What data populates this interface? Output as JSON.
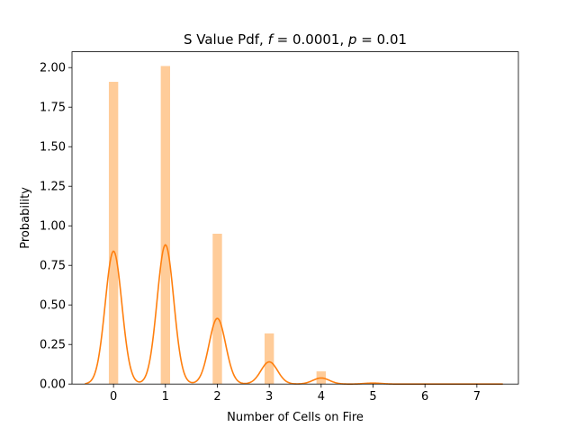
{
  "chart_data": {
    "type": "bar",
    "title": "S Value Pdf, f = 0.0001, p = 0.01",
    "title_parts": {
      "prefix": "S Value Pdf, ",
      "f_symbol": "f",
      "f_value": " = 0.0001, ",
      "p_symbol": "p",
      "p_value": " = 0.01"
    },
    "xlabel": "Number of Cells on Fire",
    "ylabel": "Probability",
    "xlim": [
      -0.8,
      7.8
    ],
    "ylim": [
      0,
      2.1
    ],
    "xticks": [
      0,
      1,
      2,
      3,
      4,
      5,
      6,
      7
    ],
    "xtick_labels": [
      "0",
      "1",
      "2",
      "3",
      "4",
      "5",
      "6",
      "7"
    ],
    "yticks": [
      0.0,
      0.25,
      0.5,
      0.75,
      1.0,
      1.25,
      1.5,
      1.75,
      2.0
    ],
    "ytick_labels": [
      "0.00",
      "0.25",
      "0.50",
      "0.75",
      "1.00",
      "1.25",
      "1.50",
      "1.75",
      "2.00"
    ],
    "grid": false,
    "legend": "none",
    "series": [
      {
        "kind": "histogram",
        "color": "#ffcc99",
        "bars": [
          {
            "x": 0,
            "width": 0.18,
            "value": 1.91
          },
          {
            "x": 1,
            "width": 0.18,
            "value": 2.01
          },
          {
            "x": 2,
            "width": 0.18,
            "value": 0.95
          },
          {
            "x": 3,
            "width": 0.18,
            "value": 0.32
          },
          {
            "x": 4,
            "width": 0.18,
            "value": 0.08
          },
          {
            "x": 5,
            "width": 0.18,
            "value": 0.005
          }
        ]
      },
      {
        "kind": "kde",
        "color": "#ff7f0e",
        "x_range": [
          -0.55,
          7.5
        ],
        "components": [
          {
            "center": 0.0,
            "height": 0.84,
            "sigma": 0.16
          },
          {
            "center": 1.0,
            "height": 0.88,
            "sigma": 0.16
          },
          {
            "center": 2.0,
            "height": 0.415,
            "sigma": 0.16
          },
          {
            "center": 3.0,
            "height": 0.14,
            "sigma": 0.16
          },
          {
            "center": 4.0,
            "height": 0.038,
            "sigma": 0.16
          },
          {
            "center": 5.0,
            "height": 0.006,
            "sigma": 0.16
          }
        ]
      }
    ]
  }
}
